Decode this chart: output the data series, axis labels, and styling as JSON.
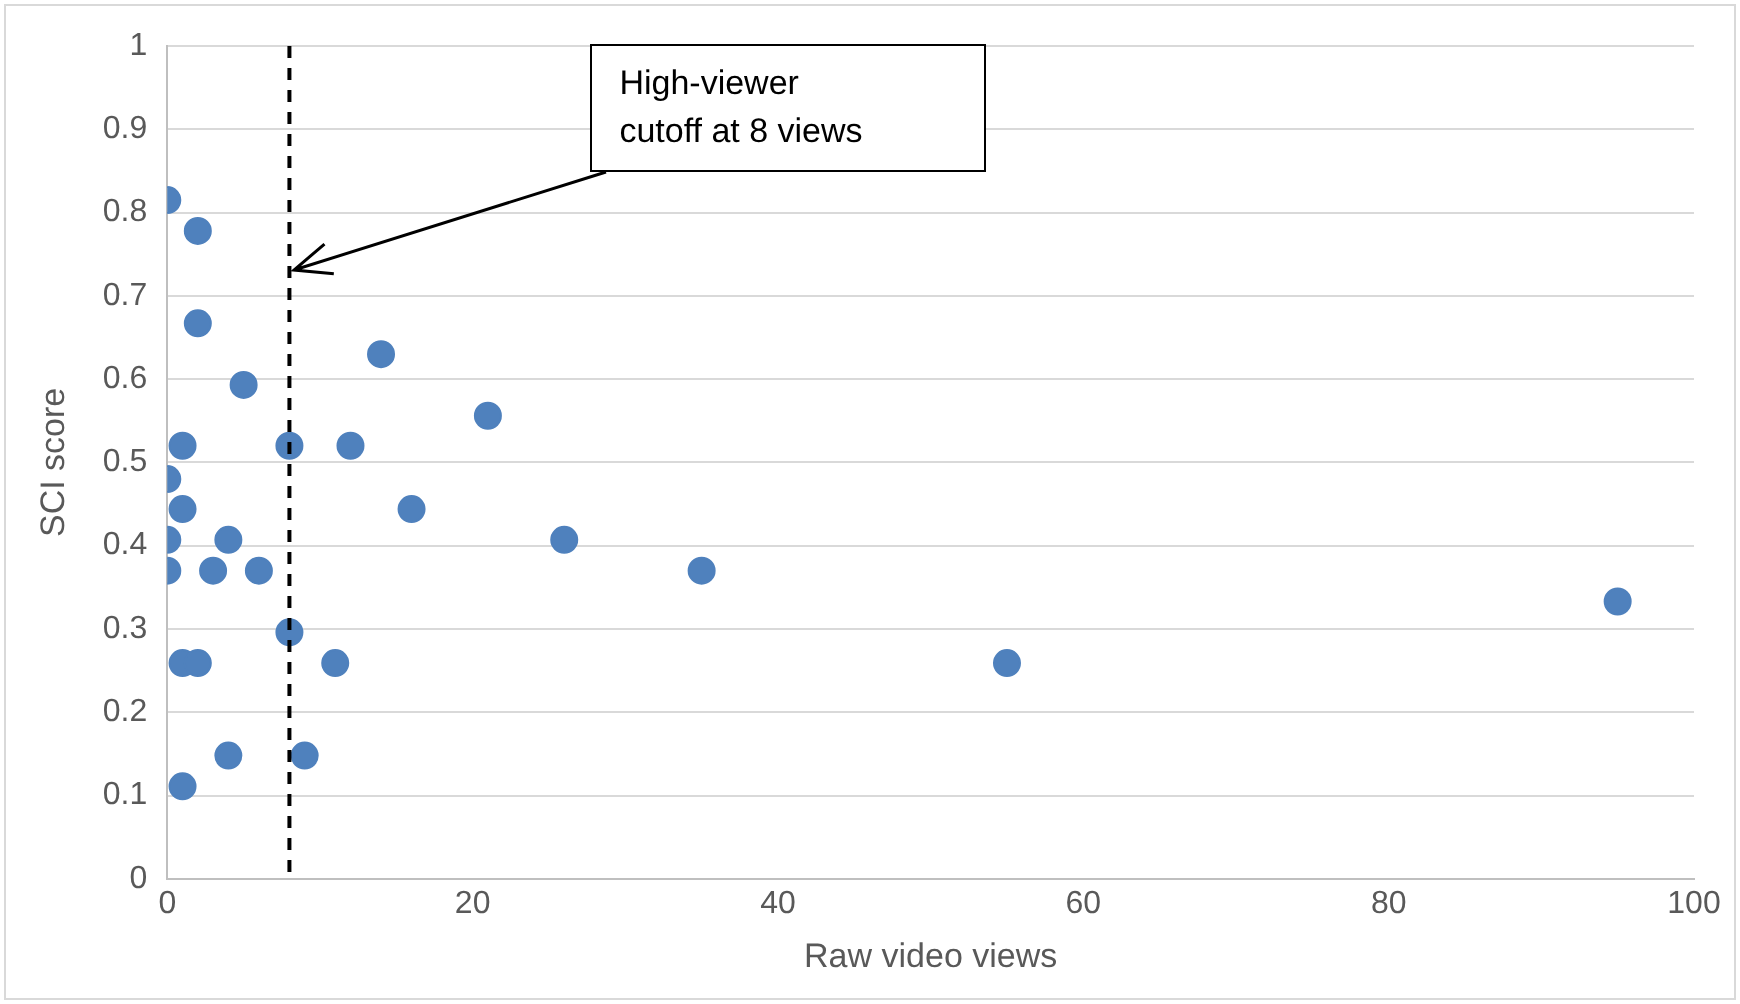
{
  "chart_data": {
    "type": "scatter",
    "xlabel": "Raw video views",
    "ylabel": "SCI score",
    "x": [
      0,
      2,
      2,
      5,
      1,
      8,
      12,
      0,
      1,
      16,
      0,
      4,
      0,
      3,
      6,
      8,
      1,
      2,
      11,
      4,
      9,
      1,
      14,
      21,
      26,
      35,
      55,
      95
    ],
    "values": [
      0.815,
      0.778,
      0.667,
      0.593,
      0.52,
      0.52,
      0.52,
      0.48,
      0.444,
      0.444,
      0.407,
      0.407,
      0.37,
      0.37,
      0.37,
      0.296,
      0.259,
      0.259,
      0.259,
      0.148,
      0.148,
      0.111,
      0.63,
      0.556,
      0.407,
      0.37,
      0.259,
      0.333
    ],
    "color": "#4f81bd",
    "marker": "circle",
    "xlim": [
      0,
      100
    ],
    "xticks": [
      0,
      20,
      40,
      60,
      80,
      100
    ],
    "ylim": [
      0,
      1
    ],
    "yticks": [
      0,
      0.1,
      0.2,
      0.3,
      0.4,
      0.5,
      0.6,
      0.7,
      0.8,
      0.9,
      1
    ],
    "grid": "y",
    "legend": false,
    "ref_lines": [
      {
        "axis": "x",
        "value": 8,
        "color": "#000000",
        "line_style": "dashed"
      }
    ],
    "annotations": [
      {
        "text": "High-viewer\ncutoff at 8 views",
        "x": 8,
        "y": 0.73
      }
    ]
  }
}
